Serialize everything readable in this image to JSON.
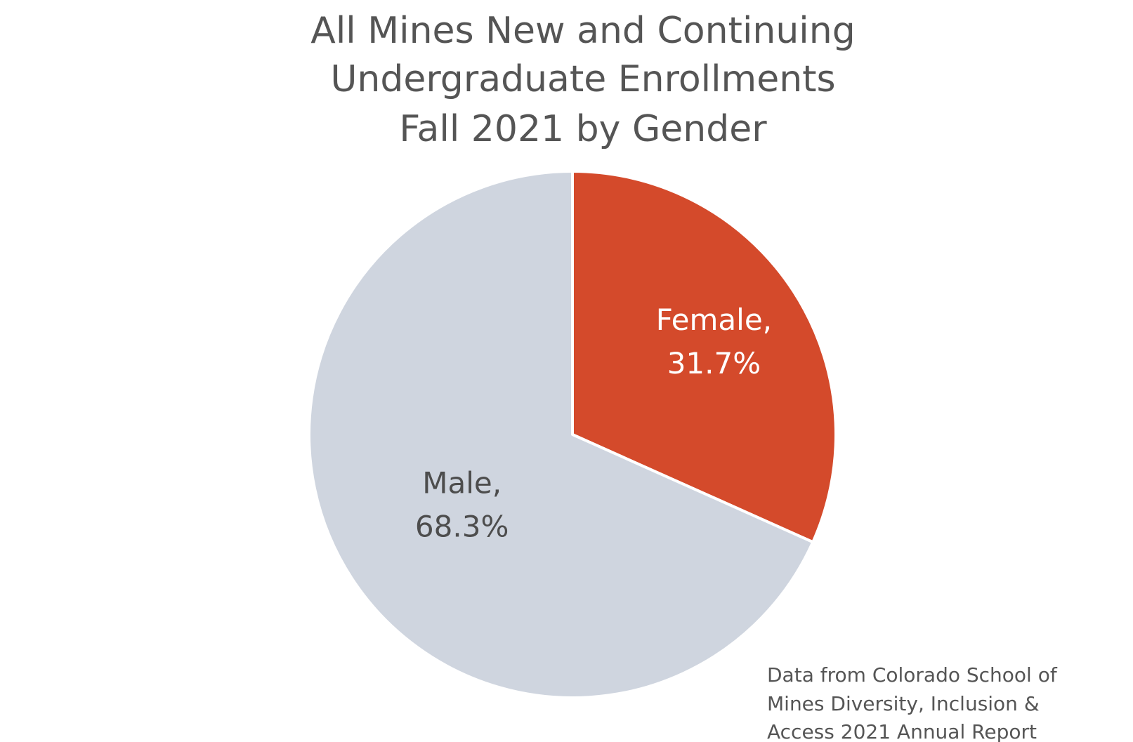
{
  "chart_data": {
    "type": "pie",
    "title": [
      "All Mines New and Continuing",
      "Undergraduate Enrollments",
      "Fall 2021 by Gender"
    ],
    "categories": [
      "Female,",
      "Male,"
    ],
    "values": [
      31.7,
      68.3
    ],
    "value_labels": [
      "31.7%",
      "68.3%"
    ],
    "colors": [
      "#d44a2b",
      "#cfd5df"
    ],
    "label_colors": [
      "#ffffff",
      "#4d4d4d"
    ],
    "source": [
      "Data from Colorado School of",
      "Mines Diversity, Inclusion &",
      "Access 2021 Annual Report"
    ]
  }
}
